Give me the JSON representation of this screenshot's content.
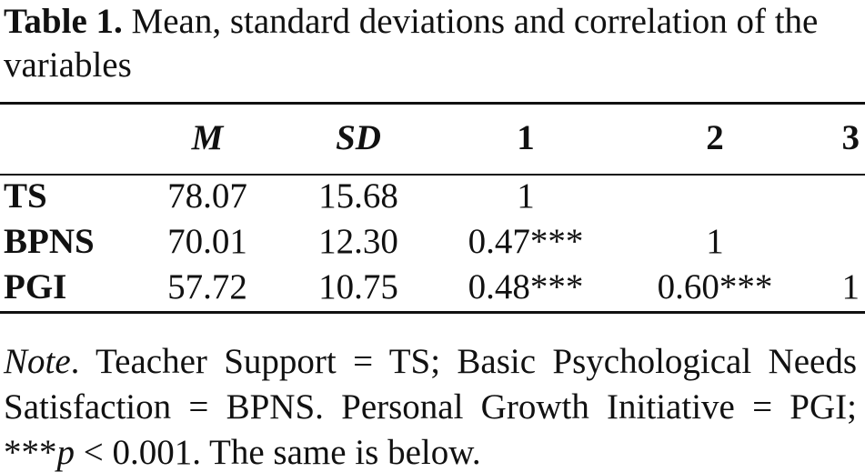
{
  "title": {
    "label": "Table 1.",
    "lines": [
      "Mean, standard deviations and correlation of the",
      "variables"
    ]
  },
  "table": {
    "header": [
      "",
      "M",
      "SD",
      "1",
      "2",
      "3"
    ],
    "rows": [
      [
        "TS",
        "78.07",
        "15.68",
        "1"
      ],
      [
        "BPNS",
        "70.01",
        "12.30",
        "0.47***",
        "1"
      ],
      [
        "PGI",
        "57.72",
        "10.75",
        "0.48***",
        "0.60***",
        "1"
      ]
    ]
  },
  "note": {
    "lines": [
      [
        {
          "text": "Note",
          "italic": true
        },
        {
          "text": ". Teacher Support = TS; Basic Psychological Needs"
        }
      ],
      [
        {
          "text": "Satisfaction = BPNS. Personal Growth Initiative = PGI;"
        }
      ],
      [
        {
          "text": "***"
        },
        {
          "text": "p",
          "italic": true
        },
        {
          "text": " < 0.001. The same is below."
        }
      ]
    ]
  }
}
